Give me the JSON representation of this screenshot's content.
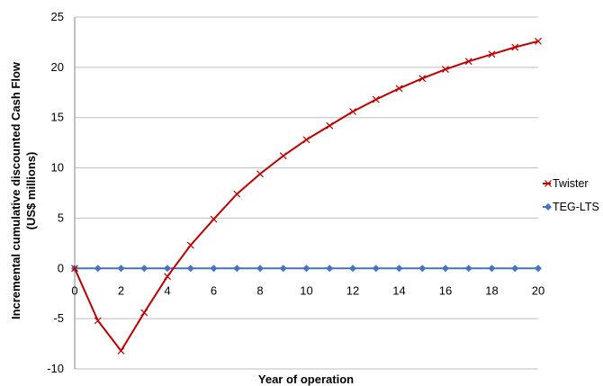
{
  "chart_data": {
    "type": "line",
    "xlabel": "Year of operation",
    "ylabel_lines": [
      "Incremental cumulative discounted Cash Flow",
      "(US$ millions)"
    ],
    "xlim": [
      0,
      20
    ],
    "ylim": [
      -10,
      25
    ],
    "x_ticks": [
      0,
      2,
      4,
      6,
      8,
      10,
      12,
      14,
      16,
      18,
      20
    ],
    "y_ticks": [
      -10,
      -5,
      0,
      5,
      10,
      15,
      20,
      25
    ],
    "grid": "horizontal",
    "legend_position": "right",
    "x": [
      0,
      1,
      2,
      3,
      4,
      5,
      6,
      7,
      8,
      9,
      10,
      11,
      12,
      13,
      14,
      15,
      16,
      17,
      18,
      19,
      20
    ],
    "series": [
      {
        "name": "Twister",
        "color": "#c00000",
        "marker": "x",
        "values": [
          0,
          -5.2,
          -8.2,
          -4.4,
          -0.8,
          2.3,
          4.9,
          7.4,
          9.4,
          11.2,
          12.8,
          14.2,
          15.6,
          16.8,
          17.9,
          18.9,
          19.8,
          20.6,
          21.3,
          22.0,
          22.6
        ]
      },
      {
        "name": "TEG-LTS",
        "color": "#4472c4",
        "marker": "diamond",
        "values": [
          0,
          0,
          0,
          0,
          0,
          0,
          0,
          0,
          0,
          0,
          0,
          0,
          0,
          0,
          0,
          0,
          0,
          0,
          0,
          0,
          0
        ]
      }
    ]
  }
}
